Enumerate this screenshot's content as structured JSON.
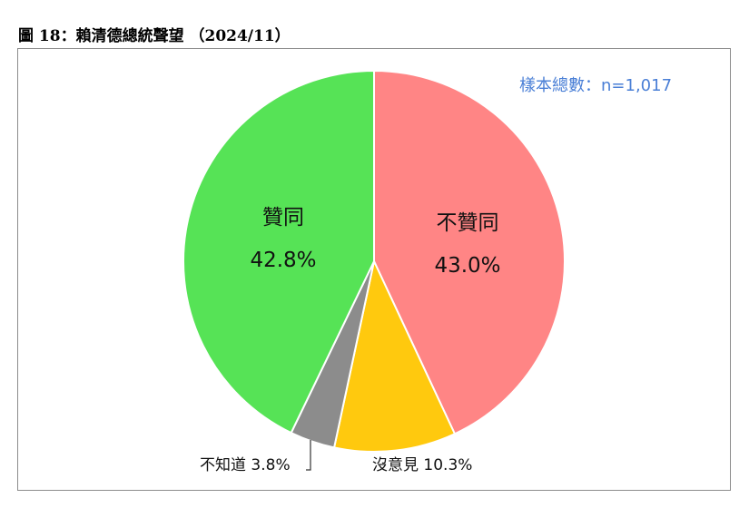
{
  "figure": {
    "title": "圖 18：賴清德總統聲望 （2024/11）",
    "sample_note": "樣本總數：n=1,017"
  },
  "chart_data": {
    "type": "pie",
    "start_angle_deg": 0,
    "direction": "clockwise",
    "slices": [
      {
        "label": "不贊同",
        "value": 43.0,
        "value_label": "43.0%",
        "color": "#ff8585",
        "label_style": "inside"
      },
      {
        "label": "沒意見",
        "value": 10.3,
        "value_label": "10.3%",
        "color": "#ffc90e",
        "label_style": "outside"
      },
      {
        "label": "不知道",
        "value": 3.8,
        "value_label": "3.8%",
        "color": "#8c8c8c",
        "label_style": "outside"
      },
      {
        "label": "贊同",
        "value": 42.8,
        "value_label": "42.8%",
        "color": "#56e356",
        "label_style": "inside"
      }
    ]
  }
}
